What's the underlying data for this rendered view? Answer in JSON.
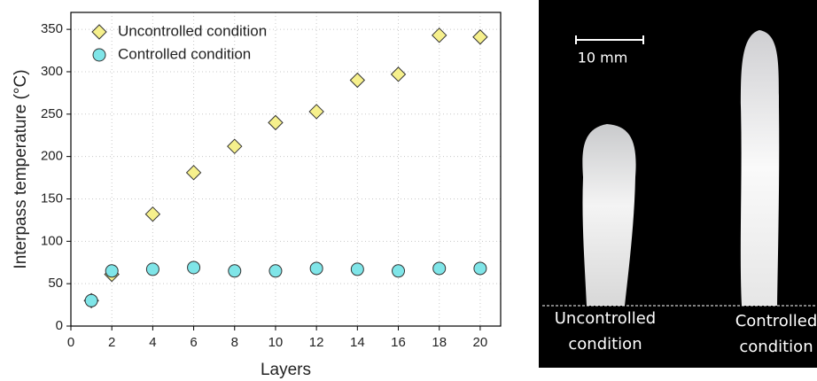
{
  "chart_data": {
    "type": "scatter",
    "x_label": "Layers",
    "y_label": "Interpass temperature (°C)",
    "xlim": [
      0,
      21
    ],
    "xticks": [
      0,
      2,
      4,
      6,
      8,
      10,
      12,
      14,
      16,
      18,
      20
    ],
    "ylim": [
      0,
      370
    ],
    "yticks": [
      0,
      50,
      100,
      150,
      200,
      250,
      300,
      350
    ],
    "grid": true,
    "legend": "upper left",
    "series": [
      {
        "name": "Uncontrolled condition",
        "color": "#f6f08c",
        "marker": "diamond",
        "x": [
          1,
          2,
          4,
          6,
          8,
          10,
          12,
          14,
          16,
          18,
          20
        ],
        "values": [
          30,
          61,
          132,
          181,
          212,
          240,
          253,
          290,
          297,
          343,
          341
        ]
      },
      {
        "name": "Controlled condition",
        "color": "#7fe5e8",
        "marker": "circle",
        "x": [
          1,
          2,
          4,
          6,
          8,
          10,
          12,
          14,
          16,
          18,
          20
        ],
        "values": [
          30,
          65,
          67,
          69,
          65,
          65,
          68,
          67,
          65,
          68,
          68
        ]
      }
    ]
  },
  "photo": {
    "scale_label": "10 mm",
    "uncontrolled_label": [
      "Uncontrolled",
      "condition"
    ],
    "controlled_label": [
      "Controlled",
      "condition"
    ]
  }
}
